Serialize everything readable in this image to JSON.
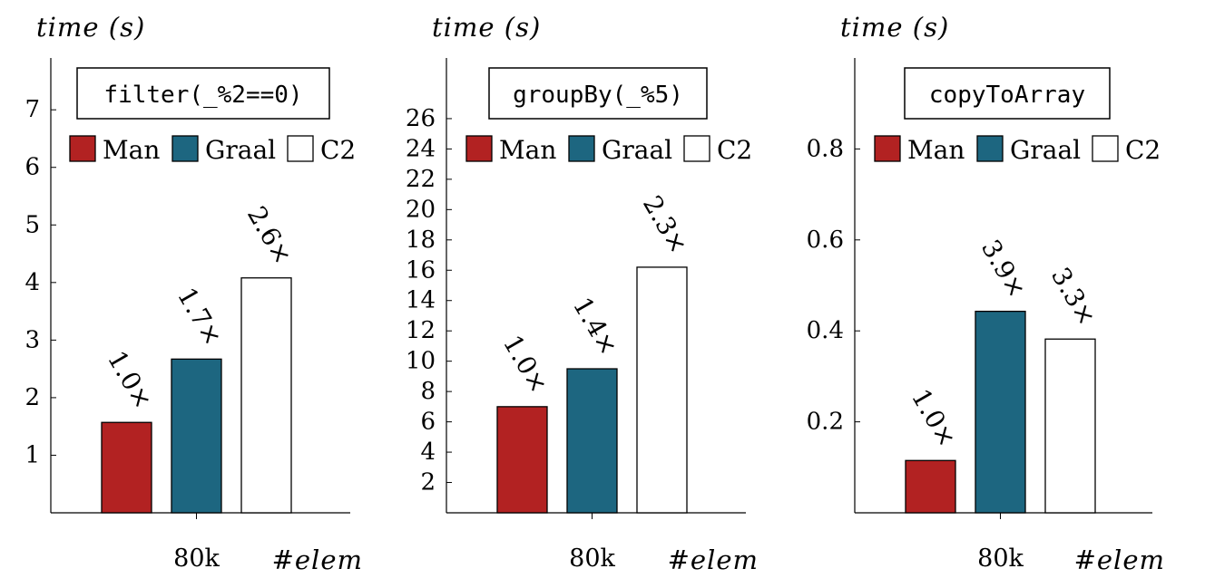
{
  "legend_colors": {
    "Man": "#b22222",
    "Graal": "#1d6680",
    "C2": "#ffffff"
  },
  "chart_data": [
    {
      "type": "bar",
      "title": "filter(_%2==0)",
      "ylabel": "time (s)",
      "xlabel": "#elem",
      "categories": [
        "80k"
      ],
      "series": [
        {
          "name": "Man",
          "values": [
            1.57
          ],
          "label": "1.0×"
        },
        {
          "name": "Graal",
          "values": [
            2.67
          ],
          "label": "1.7×"
        },
        {
          "name": "C2",
          "values": [
            4.08
          ],
          "label": "2.6×"
        }
      ],
      "ylim": [
        0,
        7.9
      ],
      "yticks": [
        1,
        2,
        3,
        4,
        5,
        6,
        7
      ],
      "ytick_labels": [
        "1",
        "2",
        "3",
        "4",
        "5",
        "6",
        "7"
      ],
      "legend_position": "top"
    },
    {
      "type": "bar",
      "title": "groupBy(_%5)",
      "ylabel": "time (s)",
      "xlabel": "#elem",
      "categories": [
        "80k"
      ],
      "series": [
        {
          "name": "Man",
          "values": [
            7.0
          ],
          "label": "1.0×"
        },
        {
          "name": "Graal",
          "values": [
            9.5
          ],
          "label": "1.4×"
        },
        {
          "name": "C2",
          "values": [
            16.2
          ],
          "label": "2.3×"
        }
      ],
      "ylim": [
        0,
        30
      ],
      "yticks": [
        2,
        4,
        6,
        8,
        10,
        12,
        14,
        16,
        18,
        20,
        22,
        24,
        26
      ],
      "ytick_labels": [
        "2",
        "4",
        "6",
        "8",
        "10",
        "12",
        "14",
        "16",
        "18",
        "20",
        "22",
        "24",
        "26"
      ],
      "legend_position": "top"
    },
    {
      "type": "bar",
      "title": "copyToArray",
      "ylabel": "time (s)",
      "xlabel": "#elem",
      "categories": [
        "80k"
      ],
      "series": [
        {
          "name": "Man",
          "values": [
            0.115
          ],
          "label": "1.0×"
        },
        {
          "name": "Graal",
          "values": [
            0.443
          ],
          "label": "3.9×"
        },
        {
          "name": "C2",
          "values": [
            0.382
          ],
          "label": "3.3×"
        }
      ],
      "ylim": [
        0,
        1.0
      ],
      "yticks": [
        0.2,
        0.4,
        0.6,
        0.8
      ],
      "ytick_labels": [
        "0.2",
        "0.4",
        "0.6",
        "0.8"
      ],
      "legend_position": "top"
    }
  ]
}
